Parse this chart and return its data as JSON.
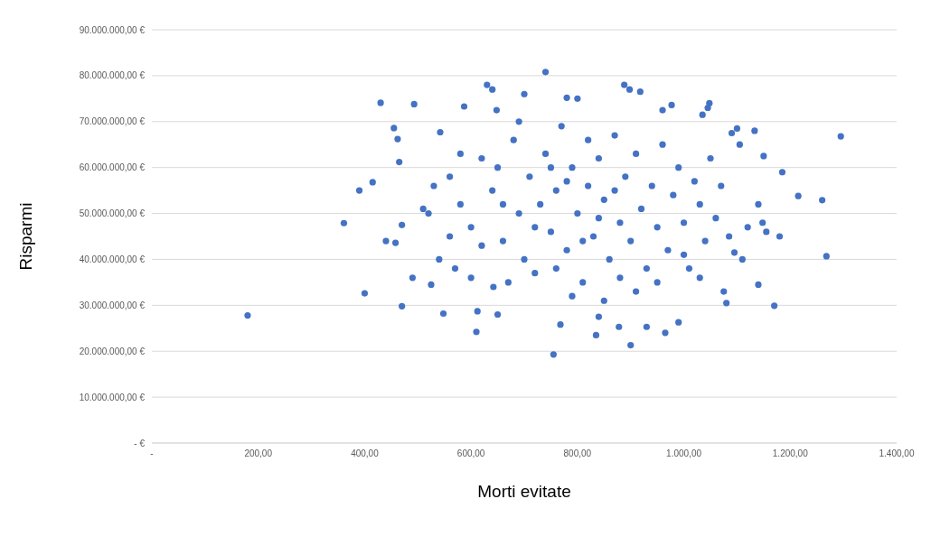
{
  "chart_data": {
    "type": "scatter",
    "xlabel": "Morti evitate",
    "ylabel": "Risparmi",
    "grid": "y",
    "marker": "circle",
    "xlim": [
      0,
      1400
    ],
    "xticks": [
      {
        "value": 0,
        "label": "-"
      },
      {
        "value": 200,
        "label": "200,00"
      },
      {
        "value": 400,
        "label": "400,00"
      },
      {
        "value": 600,
        "label": "600,00"
      },
      {
        "value": 800,
        "label": "800,00"
      },
      {
        "value": 1000,
        "label": "1.000,00"
      },
      {
        "value": 1200,
        "label": "1.200,00"
      },
      {
        "value": 1400,
        "label": "1.400,00"
      }
    ],
    "ylim": [
      0,
      90000000
    ],
    "yticks": [
      {
        "value": 0,
        "label": "-   €"
      },
      {
        "value": 10000000,
        "label": "10.000.000,00 €"
      },
      {
        "value": 20000000,
        "label": "20.000.000,00 €"
      },
      {
        "value": 30000000,
        "label": "30.000.000,00 €"
      },
      {
        "value": 40000000,
        "label": "40.000.000,00 €"
      },
      {
        "value": 50000000,
        "label": "50.000.000,00 €"
      },
      {
        "value": 60000000,
        "label": "60.000.000,00 €"
      },
      {
        "value": 70000000,
        "label": "70.000.000,00 €"
      },
      {
        "value": 80000000,
        "label": "80.000.000,00 €"
      },
      {
        "value": 90000000,
        "label": "90.000.000,00 €"
      }
    ],
    "series": [
      {
        "color": "#4472c4",
        "x": [
          180,
          361,
          400,
          390,
          415,
          430,
          455,
          462,
          465,
          470,
          493,
          490,
          458,
          470,
          440,
          510,
          525,
          548,
          542,
          587,
          610,
          612,
          630,
          640,
          648,
          642,
          650,
          700,
          740,
          755,
          768,
          780,
          800,
          835,
          840,
          878,
          888,
          900,
          898,
          918,
          930,
          960,
          965,
          977,
          990,
          1035,
          1048,
          1045,
          1080,
          1090,
          1100,
          1105,
          1133,
          1140,
          1170,
          1180,
          1185,
          1215,
          1260,
          1268,
          1295,
          1150,
          1155,
          1148,
          1140,
          1120,
          1110,
          1095,
          1075,
          560,
          580,
          600,
          620,
          640,
          660,
          680,
          690,
          700,
          710,
          720,
          730,
          740,
          750,
          760,
          770,
          780,
          790,
          800,
          810,
          820,
          830,
          840,
          850,
          860,
          870,
          880,
          890,
          900,
          910,
          920,
          930,
          940,
          950,
          960,
          970,
          980,
          990,
          1000,
          1010,
          1020,
          1030,
          1040,
          1050,
          1060,
          1070,
          1085,
          600,
          620,
          580,
          560,
          540,
          520,
          530,
          570,
          650,
          670,
          690,
          720,
          760,
          790,
          820,
          850,
          880,
          910,
          950,
          1000,
          1030,
          780,
          810,
          840,
          870,
          660,
          750
        ],
        "values": [
          27800000,
          47900000,
          32600000,
          55000000,
          56800000,
          74100000,
          68600000,
          66200000,
          61200000,
          29800000,
          73800000,
          36000000,
          43600000,
          47500000,
          44000000,
          51000000,
          34500000,
          28200000,
          67700000,
          73300000,
          24200000,
          28700000,
          78000000,
          77000000,
          72500000,
          34000000,
          28000000,
          76000000,
          80800000,
          19300000,
          25800000,
          75200000,
          75000000,
          23500000,
          27500000,
          25300000,
          78000000,
          21300000,
          77000000,
          76500000,
          25300000,
          72500000,
          24000000,
          73600000,
          26300000,
          71500000,
          74000000,
          73000000,
          30500000,
          67500000,
          68500000,
          65000000,
          68000000,
          34500000,
          29900000,
          45000000,
          59000000,
          53800000,
          52900000,
          40700000,
          66800000,
          62500000,
          46000000,
          48000000,
          52000000,
          47000000,
          40000000,
          41500000,
          33000000,
          58000000,
          52000000,
          47000000,
          62000000,
          55000000,
          44000000,
          66000000,
          50000000,
          40000000,
          58000000,
          37000000,
          52000000,
          63000000,
          46000000,
          55000000,
          69000000,
          42000000,
          60000000,
          50000000,
          35000000,
          56000000,
          45000000,
          62000000,
          53000000,
          40000000,
          67000000,
          48000000,
          58000000,
          44000000,
          63000000,
          51000000,
          38000000,
          56000000,
          47000000,
          65000000,
          42000000,
          54000000,
          60000000,
          48000000,
          38000000,
          57000000,
          52000000,
          44000000,
          62000000,
          49000000,
          56000000,
          45000000,
          36000000,
          43000000,
          63000000,
          45000000,
          40000000,
          50000000,
          56000000,
          38000000,
          60000000,
          35000000,
          70000000,
          47000000,
          38000000,
          32000000,
          66000000,
          31000000,
          36000000,
          33000000,
          35000000,
          41000000,
          36000000,
          57000000,
          44000000,
          49000000,
          55000000,
          52000000,
          60000000
        ]
      }
    ]
  }
}
